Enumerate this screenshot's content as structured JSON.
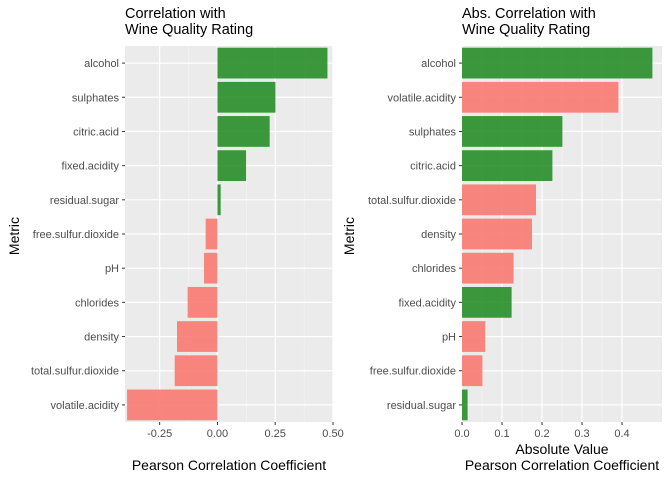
{
  "chart_data": [
    {
      "type": "bar",
      "orientation": "horizontal",
      "title": [
        "Correlation with",
        "Wine Quality Rating"
      ],
      "xlabel": [
        "Pearson Correlation Coefficient"
      ],
      "ylabel": "Metric",
      "xlim": [
        -0.4,
        0.5
      ],
      "xticks": [
        -0.25,
        0,
        0.25,
        0.5
      ],
      "xtick_labels": [
        "-0.25",
        "0.00",
        "0.25",
        "0.50"
      ],
      "grid": true,
      "categories": [
        "alcohol",
        "sulphates",
        "citric.acid",
        "fixed.acidity",
        "residual.sugar",
        "free.sulfur.dioxide",
        "pH",
        "chlorides",
        "density",
        "total.sulfur.dioxide",
        "volatile.acidity"
      ],
      "values": [
        0.476,
        0.251,
        0.226,
        0.124,
        0.014,
        -0.051,
        -0.058,
        -0.129,
        -0.175,
        -0.185,
        -0.391
      ],
      "colors": {
        "positive": "#228b22",
        "negative": "#f8766d"
      }
    },
    {
      "type": "bar",
      "orientation": "horizontal",
      "title": [
        "Abs. Correlation with",
        "Wine Quality Rating"
      ],
      "xlabel": [
        "Absolute Value",
        "Pearson Correlation Coefficient"
      ],
      "ylabel": "Metric",
      "xlim": [
        0,
        0.5
      ],
      "xticks": [
        0,
        0.1,
        0.2,
        0.3,
        0.4
      ],
      "xtick_labels": [
        "0.0",
        "0.1",
        "0.2",
        "0.3",
        "0.4"
      ],
      "grid": true,
      "categories": [
        "alcohol",
        "volatile.acidity",
        "sulphates",
        "citric.acid",
        "total.sulfur.dioxide",
        "density",
        "chlorides",
        "fixed.acidity",
        "pH",
        "free.sulfur.dioxide",
        "residual.sugar"
      ],
      "values": [
        0.476,
        0.391,
        0.251,
        0.226,
        0.185,
        0.175,
        0.129,
        0.124,
        0.058,
        0.051,
        0.014
      ],
      "signs": [
        "positive",
        "negative",
        "positive",
        "positive",
        "negative",
        "negative",
        "negative",
        "positive",
        "negative",
        "negative",
        "positive"
      ],
      "colors": {
        "positive": "#228b22",
        "negative": "#f8766d"
      }
    }
  ]
}
